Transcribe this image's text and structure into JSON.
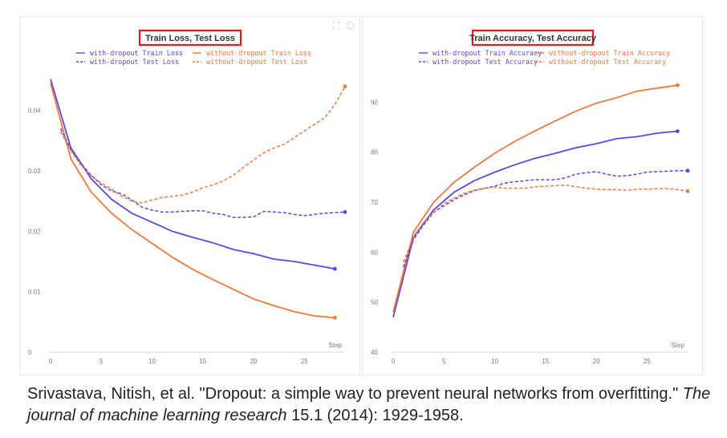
{
  "chart_data": [
    {
      "type": "line",
      "title": "Train Loss, Test Loss",
      "xlabel": "Step",
      "ylabel": "",
      "xlim": [
        0,
        29
      ],
      "ylim": [
        0,
        0.047
      ],
      "xticks": [
        0,
        5,
        10,
        15,
        20,
        25
      ],
      "yticks": [
        0,
        0.01,
        0.02,
        0.03,
        0.04
      ],
      "ytick_labels": [
        "0",
        "0.01",
        "0.02",
        "0.03",
        "0.04"
      ],
      "grid": false,
      "legend_position": "top",
      "series": [
        {
          "name": "with-dropout Train Loss",
          "color": "#5b47e8",
          "dash": false,
          "end_marker": true,
          "x": [
            0,
            2,
            4,
            6,
            8,
            10,
            12,
            14,
            16,
            18,
            20,
            22,
            24,
            26,
            28
          ],
          "y": [
            0.0452,
            0.0338,
            0.0287,
            0.0253,
            0.023,
            0.0215,
            0.02,
            0.019,
            0.0181,
            0.017,
            0.0163,
            0.0154,
            0.015,
            0.0144,
            0.0138
          ]
        },
        {
          "name": "without-dropout Train Loss",
          "color": "#f07a3a",
          "dash": false,
          "end_marker": true,
          "x": [
            0,
            2,
            4,
            6,
            8,
            10,
            12,
            14,
            16,
            18,
            20,
            22,
            24,
            26,
            28
          ],
          "y": [
            0.0445,
            0.032,
            0.0265,
            0.023,
            0.0203,
            0.018,
            0.0157,
            0.0137,
            0.012,
            0.0104,
            0.0088,
            0.0077,
            0.0067,
            0.006,
            0.0057
          ]
        },
        {
          "name": "with-dropout Test Loss",
          "color": "#5b47e8",
          "dash": true,
          "end_marker": true,
          "x": [
            1,
            2,
            3,
            4,
            5,
            6,
            7,
            8,
            9,
            10,
            11,
            12,
            13,
            14,
            15,
            16,
            17,
            18,
            19,
            20,
            21,
            22,
            23,
            24,
            25,
            26,
            27,
            28,
            29
          ],
          "y": [
            0.037,
            0.0335,
            0.0312,
            0.0293,
            0.0277,
            0.0267,
            0.0262,
            0.0252,
            0.024,
            0.0235,
            0.0232,
            0.0232,
            0.0233,
            0.0234,
            0.0234,
            0.023,
            0.0228,
            0.0223,
            0.0223,
            0.0224,
            0.0233,
            0.0232,
            0.0231,
            0.0228,
            0.0226,
            0.0228,
            0.023,
            0.0231,
            0.0232
          ]
        },
        {
          "name": "without-dropout Test Loss",
          "color": "#f07a3a",
          "dash": true,
          "end_marker": true,
          "x": [
            1,
            2,
            3,
            4,
            5,
            6,
            7,
            8,
            9,
            10,
            11,
            12,
            13,
            14,
            15,
            16,
            17,
            18,
            19,
            20,
            21,
            22,
            23,
            24,
            25,
            26,
            27,
            28,
            29
          ],
          "y": [
            0.0365,
            0.0333,
            0.0309,
            0.0292,
            0.028,
            0.027,
            0.0258,
            0.025,
            0.0247,
            0.0252,
            0.0256,
            0.0258,
            0.026,
            0.0265,
            0.0272,
            0.0277,
            0.0283,
            0.0293,
            0.0306,
            0.0318,
            0.033,
            0.0338,
            0.0344,
            0.0355,
            0.0366,
            0.0377,
            0.0388,
            0.041,
            0.044
          ]
        }
      ]
    },
    {
      "type": "line",
      "title": "Train Accuracy, Test Accuracy",
      "xlabel": "Step",
      "ylabel": "",
      "xlim": [
        0,
        29
      ],
      "ylim": [
        40,
        96.8
      ],
      "xticks": [
        0,
        5,
        10,
        15,
        20,
        25
      ],
      "yticks": [
        40,
        50,
        60,
        70,
        80,
        90
      ],
      "ytick_labels": [
        "40",
        "50",
        "60",
        "70",
        "80",
        "90"
      ],
      "grid": false,
      "legend_position": "top",
      "series": [
        {
          "name": "with-dropout Train Accuracy",
          "color": "#5b47e8",
          "dash": false,
          "end_marker": true,
          "x": [
            0,
            2,
            4,
            6,
            8,
            10,
            12,
            14,
            16,
            18,
            20,
            22,
            24,
            26,
            28
          ],
          "y": [
            47.0,
            63.0,
            68.5,
            72.0,
            74.3,
            76.0,
            77.5,
            78.8,
            79.8,
            80.9,
            81.7,
            82.7,
            83.1,
            83.8,
            84.2
          ]
        },
        {
          "name": "without-dropout Train Accuracy",
          "color": "#f07a3a",
          "dash": false,
          "end_marker": true,
          "x": [
            0,
            2,
            4,
            6,
            8,
            10,
            12,
            14,
            16,
            18,
            20,
            22,
            24,
            26,
            28
          ],
          "y": [
            48.0,
            64.0,
            70.0,
            74.0,
            77.0,
            79.8,
            82.2,
            84.3,
            86.3,
            88.2,
            89.8,
            90.9,
            92.2,
            92.8,
            93.4
          ]
        },
        {
          "name": "with-dropout Test Accuracy",
          "color": "#5b47e8",
          "dash": true,
          "end_marker": true,
          "x": [
            1,
            2,
            3,
            4,
            5,
            6,
            7,
            8,
            9,
            10,
            11,
            12,
            13,
            14,
            15,
            16,
            17,
            18,
            19,
            20,
            21,
            22,
            23,
            24,
            25,
            26,
            27,
            28,
            29
          ],
          "y": [
            57.0,
            62.5,
            65.5,
            68.0,
            69.3,
            70.5,
            71.5,
            72.3,
            72.8,
            73.2,
            73.8,
            74.1,
            74.3,
            74.5,
            74.5,
            74.5,
            74.9,
            75.6,
            75.9,
            76.1,
            75.6,
            75.2,
            75.3,
            75.6,
            76.0,
            76.1,
            76.2,
            76.3,
            76.3
          ]
        },
        {
          "name": "without-dropout Test Accuracy",
          "color": "#f07a3a",
          "dash": true,
          "end_marker": true,
          "x": [
            1,
            2,
            3,
            4,
            5,
            6,
            7,
            8,
            9,
            10,
            11,
            12,
            13,
            14,
            15,
            16,
            17,
            18,
            19,
            20,
            21,
            22,
            23,
            24,
            25,
            26,
            27,
            28,
            29
          ],
          "y": [
            58.0,
            63.0,
            66.0,
            68.0,
            69.7,
            70.8,
            71.8,
            72.4,
            72.8,
            73.0,
            72.8,
            72.8,
            72.8,
            73.1,
            73.2,
            73.3,
            73.4,
            73.1,
            72.8,
            72.6,
            72.5,
            72.5,
            72.4,
            72.6,
            72.6,
            72.7,
            72.7,
            72.5,
            72.2
          ]
        }
      ]
    }
  ],
  "citation": {
    "part1": "Srivastava, Nitish, et al. \"Dropout: a simple way to prevent neural networks from overfitting.\" ",
    "journal": "The journal of machine learning research",
    "part2": " 15.1 (2014): 1929-1958."
  },
  "icons": {
    "expand": "expand-icon",
    "comment": "comment-icon"
  }
}
